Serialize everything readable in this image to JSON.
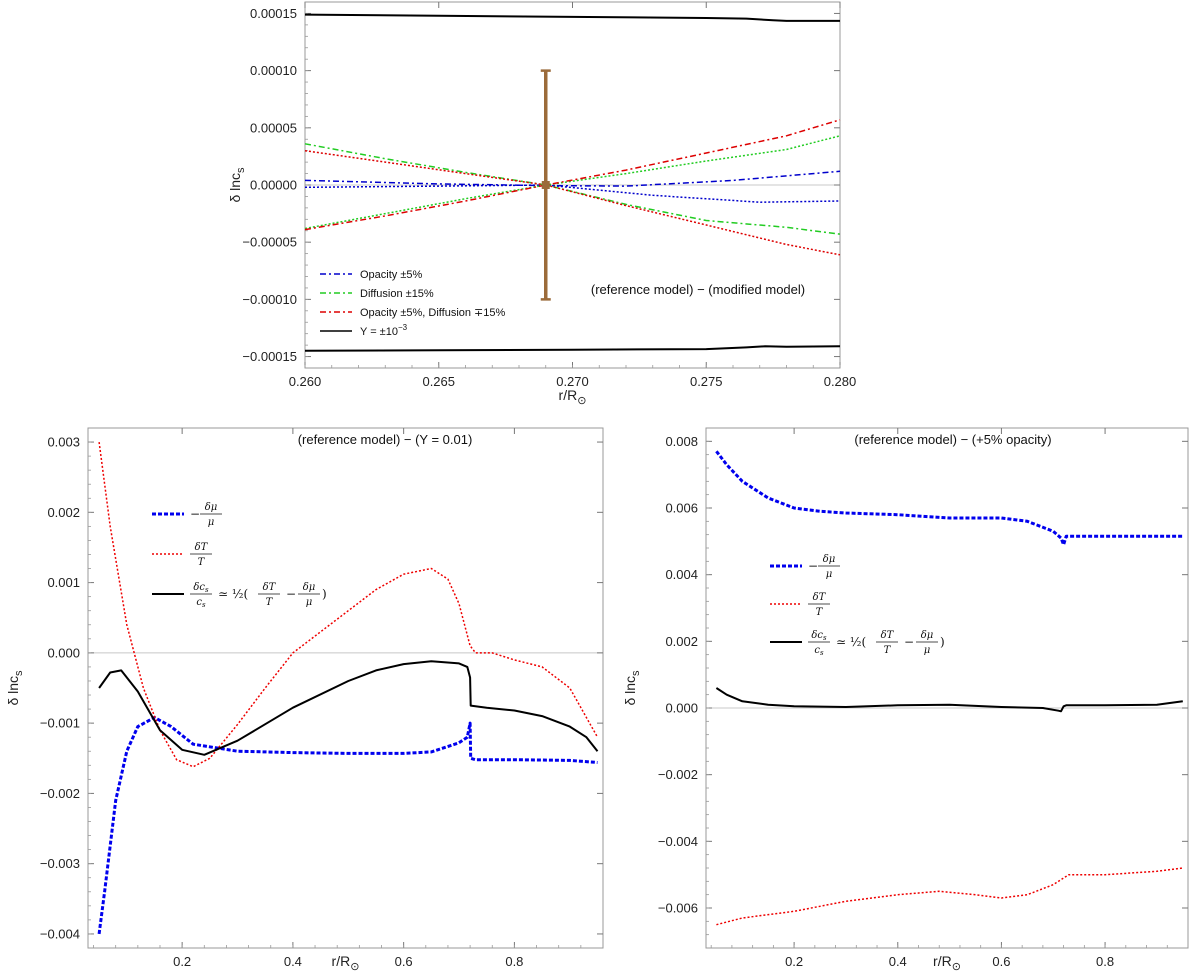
{
  "chart_data": [
    {
      "id": "top",
      "type": "line",
      "xlabel": "r/R",
      "xlabel_sub": "⊙",
      "ylabel": "δ lnc",
      "ylabel_sub": "s",
      "xlim": [
        0.26,
        0.28
      ],
      "ylim": [
        -0.00016,
        0.00016
      ],
      "xticks": [
        0.26,
        0.265,
        0.27,
        0.275,
        0.28
      ],
      "xtick_labels": [
        "0.260",
        "0.265",
        "0.270",
        "0.275",
        "0.280"
      ],
      "yticks": [
        -0.00015,
        -0.0001,
        -5e-05,
        0,
        5e-05,
        0.0001,
        0.00015
      ],
      "ytick_labels": [
        "−0.00015",
        "−0.00010",
        "−0.00005",
        "0.00000",
        "0.00005",
        "0.00010",
        "0.00015"
      ],
      "annotation": "(reference model) − (modified model)",
      "errorbar": {
        "x": 0.269,
        "y": 0.0,
        "ylow": -0.0001,
        "yhigh": 0.0001,
        "color": "#9b6b3a"
      },
      "legend": [
        {
          "label": "Opacity ±5%",
          "color": "#0000cc",
          "dash": "6,3,2,3"
        },
        {
          "label": "Diffusion ±15%",
          "color": "#22cc22",
          "dash": "6,3,2,3"
        },
        {
          "label": "Opacity ±5%, Diffusion ∓15%",
          "color": "#dd0000",
          "dash": "6,3,2,3"
        },
        {
          "label": "Y = ±10",
          "sup": "−3",
          "color": "#000000",
          "dash": ""
        }
      ],
      "series": [
        {
          "name": "Y +",
          "color": "#000000",
          "dash": "",
          "width": 2,
          "x": [
            0.26,
            0.265,
            0.27,
            0.275,
            0.2765,
            0.2775,
            0.278,
            0.28
          ],
          "y": [
            0.000149,
            0.000148,
            0.000147,
            0.000146,
            0.0001455,
            0.000144,
            0.0001435,
            0.0001435
          ]
        },
        {
          "name": "Y -",
          "color": "#000000",
          "dash": "",
          "width": 2,
          "x": [
            0.26,
            0.265,
            0.27,
            0.275,
            0.2765,
            0.2772,
            0.278,
            0.28
          ],
          "y": [
            -0.000145,
            -0.0001445,
            -0.000144,
            -0.0001435,
            -0.000142,
            -0.000141,
            -0.0001415,
            -0.000141
          ]
        },
        {
          "name": "Opacity +",
          "color": "#0000cc",
          "dash": "6,3,2,3",
          "width": 1.5,
          "x": [
            0.26,
            0.265,
            0.269,
            0.272,
            0.276,
            0.28
          ],
          "y": [
            4e-06,
            1e-06,
            -5e-07,
            -1e-06,
            4e-06,
            1.2e-05
          ]
        },
        {
          "name": "Opacity -",
          "color": "#0000cc",
          "dash": "2,2",
          "width": 1.5,
          "x": [
            0.26,
            0.265,
            0.269,
            0.273,
            0.277,
            0.28
          ],
          "y": [
            -2e-06,
            -1e-06,
            0.0,
            -9e-06,
            -1.5e-05,
            -1.4e-05
          ]
        },
        {
          "name": "Diffusion +",
          "color": "#22cc22",
          "dash": "6,3,2,3",
          "width": 1.5,
          "x": [
            0.26,
            0.263,
            0.266,
            0.269,
            0.272,
            0.275,
            0.278,
            0.28
          ],
          "y": [
            3.6e-05,
            2.3e-05,
            1.1e-05,
            0.0,
            -1.7e-05,
            -3.1e-05,
            -3.7e-05,
            -4.3e-05
          ]
        },
        {
          "name": "Diffusion -",
          "color": "#22cc22",
          "dash": "2,2",
          "width": 1.5,
          "x": [
            0.26,
            0.263,
            0.266,
            0.269,
            0.272,
            0.275,
            0.278,
            0.28
          ],
          "y": [
            -3.8e-05,
            -2.5e-05,
            -1.2e-05,
            0.0,
            1e-05,
            2.1e-05,
            3.1e-05,
            4.3e-05
          ]
        },
        {
          "name": "Mixed +",
          "color": "#dd0000",
          "dash": "6,3,2,3",
          "width": 1.5,
          "x": [
            0.26,
            0.263,
            0.266,
            0.269,
            0.272,
            0.275,
            0.278,
            0.28
          ],
          "y": [
            -3.9e-05,
            -2.7e-05,
            -1.4e-05,
            0.0,
            1.3e-05,
            2.8e-05,
            4.3e-05,
            5.7e-05
          ]
        },
        {
          "name": "Mixed -",
          "color": "#dd0000",
          "dash": "2,2",
          "width": 1.5,
          "x": [
            0.26,
            0.263,
            0.266,
            0.269,
            0.272,
            0.275,
            0.278,
            0.28
          ],
          "y": [
            3e-05,
            2e-05,
            1e-05,
            0.0,
            -1.8e-05,
            -3.5e-05,
            -5.2e-05,
            -6.1e-05
          ]
        }
      ]
    },
    {
      "id": "bottom-left",
      "type": "line",
      "xlabel": "r/R",
      "xlabel_sub": "⊙",
      "ylabel": "δ lnc",
      "ylabel_sub": "s",
      "xlim": [
        0.03,
        0.96
      ],
      "ylim": [
        -0.0042,
        0.0032
      ],
      "xticks": [
        0.2,
        0.4,
        0.6,
        0.8
      ],
      "xtick_labels": [
        "0.2",
        "0.4",
        "0.6",
        "0.8"
      ],
      "yticks": [
        -0.004,
        -0.003,
        -0.002,
        -0.001,
        0,
        0.001,
        0.002,
        0.003
      ],
      "ytick_labels": [
        "−0.004",
        "−0.003",
        "−0.002",
        "−0.001",
        "0.000",
        "0.001",
        "0.002",
        "0.003"
      ],
      "annotation": "(reference model) − (Y = 0.01)",
      "series": [
        {
          "name": "-dmu/mu",
          "color": "#0000ee",
          "dash": "4,2",
          "width": 3,
          "x": [
            0.05,
            0.06,
            0.08,
            0.1,
            0.12,
            0.15,
            0.18,
            0.22,
            0.3,
            0.4,
            0.5,
            0.6,
            0.65,
            0.7,
            0.715,
            0.72,
            0.721,
            0.73,
            0.8,
            0.9,
            0.95
          ],
          "y": [
            -0.004,
            -0.0034,
            -0.0021,
            -0.0014,
            -0.00105,
            -0.00092,
            -0.00105,
            -0.0013,
            -0.0014,
            -0.00142,
            -0.00143,
            -0.00143,
            -0.00141,
            -0.00128,
            -0.0012,
            -0.001,
            -0.0015,
            -0.00152,
            -0.00152,
            -0.00153,
            -0.00156
          ]
        },
        {
          "name": "dT/T",
          "color": "#ee0000",
          "dash": "2,2",
          "width": 1.5,
          "x": [
            0.05,
            0.07,
            0.1,
            0.13,
            0.16,
            0.19,
            0.22,
            0.25,
            0.3,
            0.35,
            0.4,
            0.5,
            0.55,
            0.6,
            0.65,
            0.68,
            0.7,
            0.72,
            0.73,
            0.76,
            0.8,
            0.85,
            0.9,
            0.95
          ],
          "y": [
            0.003,
            0.0018,
            0.0004,
            -0.0005,
            -0.0011,
            -0.00152,
            -0.00162,
            -0.0015,
            -0.00102,
            -0.0005,
            0.0,
            0.0006,
            0.0009,
            0.00112,
            0.0012,
            0.00105,
            0.0007,
            0.0001,
            0.0,
            0.0,
            -0.0001,
            -0.0002,
            -0.0005,
            -0.0012
          ]
        },
        {
          "name": "dcs/cs",
          "color": "#000000",
          "dash": "",
          "width": 2,
          "x": [
            0.05,
            0.07,
            0.09,
            0.12,
            0.16,
            0.2,
            0.24,
            0.3,
            0.4,
            0.5,
            0.55,
            0.6,
            0.65,
            0.7,
            0.715,
            0.72,
            0.721,
            0.75,
            0.8,
            0.85,
            0.9,
            0.93,
            0.95
          ],
          "y": [
            -0.0005,
            -0.00028,
            -0.00025,
            -0.00055,
            -0.0011,
            -0.00138,
            -0.00145,
            -0.00125,
            -0.00078,
            -0.0004,
            -0.00025,
            -0.00016,
            -0.00012,
            -0.00015,
            -0.0002,
            -0.00035,
            -0.00075,
            -0.00078,
            -0.00082,
            -0.0009,
            -0.00105,
            -0.0012,
            -0.0014
          ]
        }
      ],
      "legend": [
        {
          "kind": "neg-frac",
          "num": "δμ",
          "den": "μ",
          "color": "#0000ee",
          "dash": "4,2"
        },
        {
          "kind": "frac",
          "num": "δT",
          "den": "T",
          "color": "#ee0000",
          "dash": "2,2"
        },
        {
          "kind": "eq",
          "num": "δc",
          "num_sub": "s",
          "den": "c",
          "den_sub": "s",
          "eq": "≃ ½(",
          "t_num": "δT",
          "t_den": "T",
          "minus": "−",
          "m_num": "δμ",
          "m_den": "μ",
          "close": ")",
          "color": "#000000",
          "dash": ""
        }
      ]
    },
    {
      "id": "bottom-right",
      "type": "line",
      "xlabel": "r/R",
      "xlabel_sub": "⊙",
      "ylabel": "δ lnc",
      "ylabel_sub": "s",
      "xlim": [
        0.03,
        0.96
      ],
      "ylim": [
        -0.0072,
        0.0084
      ],
      "xticks": [
        0.2,
        0.4,
        0.6,
        0.8
      ],
      "xtick_labels": [
        "0.2",
        "0.4",
        "0.6",
        "0.8"
      ],
      "yticks": [
        -0.006,
        -0.004,
        -0.002,
        0,
        0.002,
        0.004,
        0.006,
        0.008
      ],
      "ytick_labels": [
        "−0.006",
        "−0.004",
        "−0.002",
        "0.000",
        "0.002",
        "0.004",
        "0.006",
        "0.008"
      ],
      "annotation": "(reference model) − (+5% opacity)",
      "series": [
        {
          "name": "-dmu/mu",
          "color": "#0000ee",
          "dash": "4,2",
          "width": 3,
          "x": [
            0.05,
            0.07,
            0.1,
            0.15,
            0.2,
            0.25,
            0.3,
            0.4,
            0.5,
            0.6,
            0.65,
            0.7,
            0.715,
            0.72,
            0.725,
            0.8,
            0.9,
            0.95
          ],
          "y": [
            0.0077,
            0.0073,
            0.0068,
            0.0063,
            0.006,
            0.0059,
            0.00585,
            0.0058,
            0.0057,
            0.0057,
            0.0056,
            0.0053,
            0.0051,
            0.0049,
            0.00515,
            0.00515,
            0.00515,
            0.00515
          ]
        },
        {
          "name": "dT/T",
          "color": "#ee0000",
          "dash": "2,2",
          "width": 1.5,
          "x": [
            0.05,
            0.1,
            0.2,
            0.3,
            0.4,
            0.48,
            0.55,
            0.6,
            0.65,
            0.7,
            0.72,
            0.73,
            0.8,
            0.9,
            0.95
          ],
          "y": [
            -0.0065,
            -0.0063,
            -0.0061,
            -0.0058,
            -0.0056,
            -0.0055,
            -0.0056,
            -0.0057,
            -0.0056,
            -0.0053,
            -0.0051,
            -0.005,
            -0.005,
            -0.0049,
            -0.0048
          ]
        },
        {
          "name": "dcs/cs",
          "color": "#000000",
          "dash": "",
          "width": 2,
          "x": [
            0.05,
            0.07,
            0.1,
            0.15,
            0.2,
            0.3,
            0.4,
            0.5,
            0.6,
            0.68,
            0.71,
            0.715,
            0.72,
            0.725,
            0.8,
            0.9,
            0.95
          ],
          "y": [
            0.0006,
            0.0004,
            0.0002,
            0.0001,
            5e-05,
            3e-05,
            8e-05,
            0.0001,
            3e-05,
            0.0,
            -8e-05,
            -0.0001,
            5e-05,
            8e-05,
            8e-05,
            0.0001,
            0.0002
          ]
        }
      ],
      "legend": [
        {
          "kind": "neg-frac",
          "num": "δμ",
          "den": "μ",
          "color": "#0000ee",
          "dash": "4,2"
        },
        {
          "kind": "frac",
          "num": "δT",
          "den": "T",
          "color": "#ee0000",
          "dash": "2,2"
        },
        {
          "kind": "eq",
          "num": "δc",
          "num_sub": "s",
          "den": "c",
          "den_sub": "s",
          "eq": "≃ ½(",
          "t_num": "δT",
          "t_den": "T",
          "minus": "−",
          "m_num": "δμ",
          "m_den": "μ",
          "close": ")",
          "color": "#000000",
          "dash": ""
        }
      ]
    }
  ]
}
